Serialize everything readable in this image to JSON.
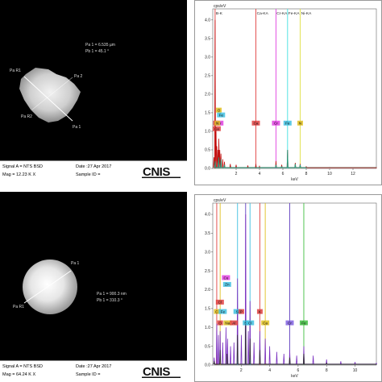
{
  "panels": {
    "top_left": {
      "signal": "Signal A = NTS BSD",
      "mag": "Mag = 12.23 K X",
      "date": "Date :27 Apr 2017",
      "sample": "Sample ID =",
      "pa1": "Pa 1 = 6.535 µm",
      "pb1": "Pb 1 = 45.1 °",
      "labels": [
        "Pa R1",
        "Pa 2",
        "Pa R2",
        "Pa 1"
      ]
    },
    "bottom_left": {
      "signal": "Signal A = NTS BSD",
      "mag": "Mag = 64.24 K X",
      "date": "Date :27 Apr 2017",
      "sample": "Sample ID =",
      "pa1": "Pa 1 = 900.3 nm",
      "pb1": "Pb 1 = 310.3 °",
      "labels": [
        "Pa 1",
        "Pa R1"
      ]
    },
    "logo_text": "CNIS"
  },
  "chart_data": [
    {
      "type": "line",
      "panel": "top-right",
      "ylabel": "cps/eV",
      "xlabel": "keV",
      "xlim": [
        0,
        14
      ],
      "ylim": [
        0,
        4.3
      ],
      "yticks": [
        0.0,
        0.5,
        1.0,
        1.5,
        2.0,
        2.5,
        3.0,
        3.5,
        4.0
      ],
      "xticks": [
        2,
        4,
        6,
        8,
        10,
        12
      ],
      "top_labels": [
        {
          "text": "B-K",
          "x": 0.2
        },
        {
          "text": "Ca-KA",
          "x": 3.7
        },
        {
          "text": "Cr-KA",
          "x": 5.4
        },
        {
          "text": "Fe-KA",
          "x": 6.4
        },
        {
          "text": "Ni-KA",
          "x": 7.5
        }
      ],
      "element_tags": [
        {
          "text": "O",
          "x": 0.52,
          "y": 1.55,
          "color": "#e0c020"
        },
        {
          "text": "Fe",
          "x": 0.71,
          "y": 1.42,
          "color": "#40c0e0"
        },
        {
          "text": "C",
          "x": 0.28,
          "y": 1.2,
          "color": "#e04040"
        },
        {
          "text": "Cr",
          "x": 0.57,
          "y": 1.2,
          "color": "#e040e0"
        },
        {
          "text": "Ca",
          "x": 0.34,
          "y": 1.05,
          "color": "#e04040"
        },
        {
          "text": "N",
          "x": 0.39,
          "y": 1.2,
          "color": "#e0c020"
        },
        {
          "text": "Ca",
          "x": 3.69,
          "y": 1.2,
          "color": "#e04040"
        },
        {
          "text": "Cr",
          "x": 5.41,
          "y": 1.2,
          "color": "#e040e0"
        },
        {
          "text": "Fe",
          "x": 6.4,
          "y": 1.2,
          "color": "#40c0e0"
        },
        {
          "text": "N",
          "x": 7.48,
          "y": 1.2,
          "color": "#e0c020"
        }
      ],
      "lines": [
        {
          "x": 0.2,
          "color": "#e04040"
        },
        {
          "x": 3.69,
          "color": "#e04040"
        },
        {
          "x": 5.41,
          "color": "#e040e0"
        },
        {
          "x": 6.4,
          "color": "#40e0e0"
        },
        {
          "x": 7.48,
          "color": "#e0e040"
        }
      ],
      "series": [
        {
          "color": "#c01010",
          "x": [
            0.1,
            0.2,
            0.28,
            0.35,
            0.45,
            0.52,
            0.6,
            0.7,
            0.85,
            1.0,
            1.5,
            2.0,
            3.0,
            3.69,
            4.0,
            5.41,
            5.9,
            6.4,
            7.06,
            7.48,
            8.0,
            10,
            14
          ],
          "y": [
            0.3,
            4.0,
            1.1,
            0.6,
            0.5,
            0.8,
            0.5,
            0.4,
            0.25,
            0.18,
            0.12,
            0.1,
            0.08,
            0.12,
            0.06,
            0.2,
            0.1,
            0.5,
            0.15,
            0.12,
            0.05,
            0.03,
            0.02
          ]
        },
        {
          "color": "#20a080",
          "x": [
            0.2,
            0.5,
            0.7,
            1.0,
            5.41,
            5.9,
            6.4,
            7.06,
            7.48,
            8.0
          ],
          "y": [
            0.2,
            0.3,
            0.25,
            0.1,
            0.1,
            0.05,
            0.5,
            0.12,
            0.1,
            0.02
          ]
        }
      ]
    },
    {
      "type": "line",
      "panel": "bottom-right",
      "ylabel": "cps/eV",
      "xlabel": "keV",
      "xlim": [
        0,
        11.5
      ],
      "ylim": [
        0,
        4.3
      ],
      "yticks": [
        0.0,
        0.5,
        1.0,
        1.5,
        2.0,
        2.5,
        3.0,
        3.5,
        4.0
      ],
      "xticks": [
        2,
        4,
        6,
        8,
        10
      ],
      "element_tags": [
        {
          "text": "Cu",
          "x": 0.93,
          "y": 2.3,
          "color": "#e040e0"
        },
        {
          "text": "Zn",
          "x": 1.01,
          "y": 2.12,
          "color": "#40c0e0"
        },
        {
          "text": "Cl",
          "x": 0.5,
          "y": 1.65,
          "color": "#e04040"
        },
        {
          "text": "C",
          "x": 0.28,
          "y": 1.4,
          "color": "#e0c020"
        },
        {
          "text": "Fe",
          "x": 0.7,
          "y": 1.4,
          "color": "#40c0e0"
        },
        {
          "text": "O",
          "x": 0.52,
          "y": 1.1,
          "color": "#e04040"
        },
        {
          "text": "Na",
          "x": 1.04,
          "y": 1.1,
          "color": "#e0c020"
        },
        {
          "text": "Al",
          "x": 1.49,
          "y": 1.1,
          "color": "#e04040"
        },
        {
          "text": "Si",
          "x": 1.74,
          "y": 1.4,
          "color": "#40c0e0"
        },
        {
          "text": "P",
          "x": 2.01,
          "y": 1.4,
          "color": "#e04040"
        },
        {
          "text": "S",
          "x": 2.31,
          "y": 1.1,
          "color": "#40c0e0"
        },
        {
          "text": "Cl",
          "x": 2.62,
          "y": 1.1,
          "color": "#40c0e0"
        },
        {
          "text": "K",
          "x": 3.31,
          "y": 1.4,
          "color": "#e04040"
        },
        {
          "text": "Ca",
          "x": 3.69,
          "y": 1.1,
          "color": "#e0c020"
        },
        {
          "text": "Cr",
          "x": 5.41,
          "y": 1.1,
          "color": "#8060e0"
        },
        {
          "text": "Fe",
          "x": 6.4,
          "y": 1.1,
          "color": "#40c040"
        }
      ],
      "lines": [
        {
          "x": 0.28,
          "color": "#e04040"
        },
        {
          "x": 0.52,
          "color": "#e0c020"
        },
        {
          "x": 1.74,
          "color": "#40c0e0"
        },
        {
          "x": 2.31,
          "color": "#6040c0"
        },
        {
          "x": 2.62,
          "color": "#40c0e0"
        },
        {
          "x": 3.31,
          "color": "#e04040"
        },
        {
          "x": 3.69,
          "color": "#e0c020"
        },
        {
          "x": 5.41,
          "color": "#6040c0"
        },
        {
          "x": 6.4,
          "color": "#40c040"
        }
      ],
      "series": [
        {
          "color": "#7a30c0",
          "x": [
            0.1,
            0.28,
            0.4,
            0.52,
            0.7,
            0.93,
            1.04,
            1.25,
            1.49,
            1.74,
            2.01,
            2.31,
            2.5,
            2.62,
            2.9,
            3.31,
            3.69,
            4.0,
            4.5,
            5.0,
            5.41,
            5.9,
            6.4,
            7.06,
            8.0,
            9.0,
            10.0,
            11.5
          ],
          "y": [
            0.2,
            1.1,
            0.8,
            0.9,
            0.6,
            1.0,
            0.7,
            0.5,
            0.6,
            2.3,
            0.8,
            4.0,
            0.9,
            1.7,
            0.6,
            0.9,
            0.7,
            0.5,
            0.35,
            0.3,
            0.4,
            0.25,
            0.5,
            0.25,
            0.15,
            0.1,
            0.08,
            0.05
          ]
        },
        {
          "color": "#303030",
          "x": [
            0.1,
            0.52,
            1.0,
            1.74,
            2.31,
            2.62,
            3.31,
            5.41,
            6.4,
            8.0,
            11.5
          ],
          "y": [
            0.1,
            0.4,
            0.3,
            0.8,
            1.2,
            0.7,
            0.4,
            0.2,
            0.3,
            0.05,
            0.02
          ]
        }
      ]
    }
  ]
}
